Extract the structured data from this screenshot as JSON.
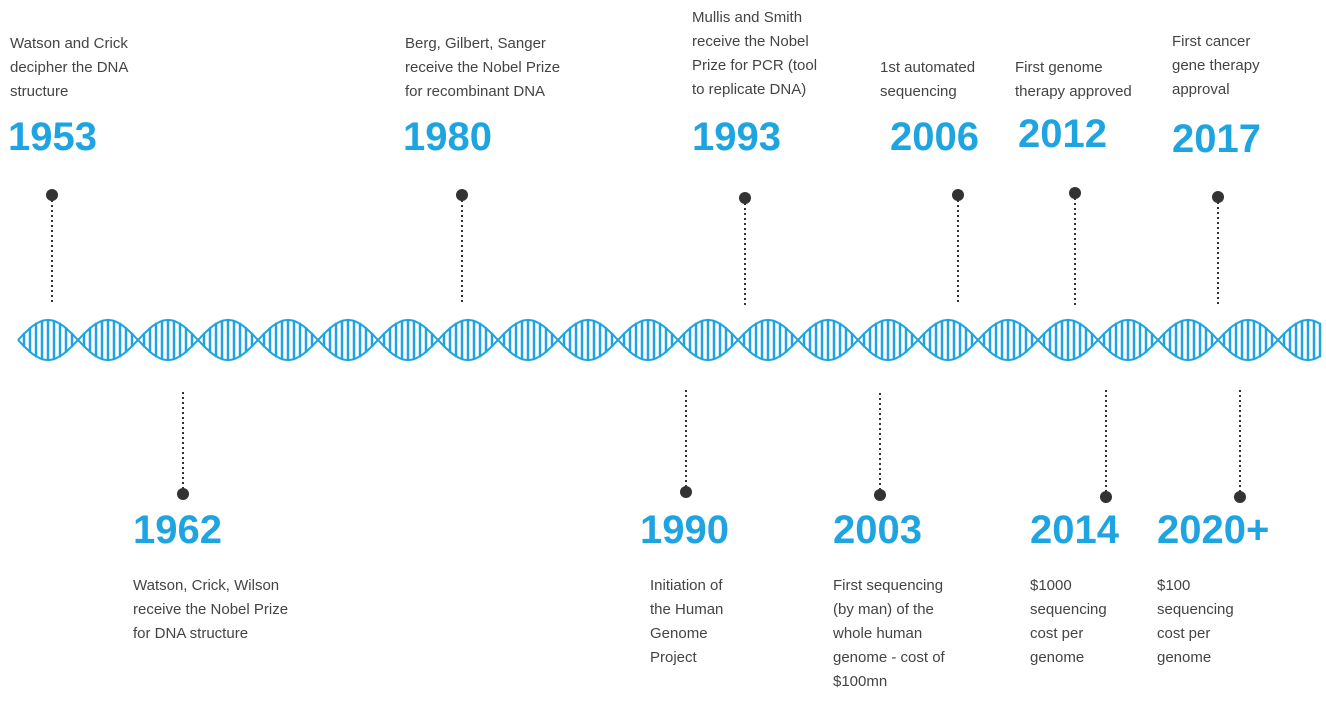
{
  "events": [
    {
      "year": "1953",
      "lines": [
        "Watson and Crick",
        "decipher the DNA",
        "structure"
      ]
    },
    {
      "year": "1962",
      "lines": [
        "Watson, Crick, Wilson",
        "receive the Nobel Prize",
        "for DNA structure"
      ]
    },
    {
      "year": "1980",
      "lines": [
        "Berg, Gilbert, Sanger",
        "receive the Nobel Prize",
        "for recombinant DNA"
      ]
    },
    {
      "year": "1990",
      "lines": [
        "Initiation of",
        "the Human",
        "Genome",
        "Project"
      ]
    },
    {
      "year": "1993",
      "lines": [
        "Mullis and Smith",
        "receive the Nobel",
        "Prize for PCR (tool",
        "to replicate DNA)"
      ]
    },
    {
      "year": "2003",
      "lines": [
        "First sequencing",
        "(by man) of the",
        "whole human",
        "genome - cost of",
        "$100mn"
      ]
    },
    {
      "year": "2006",
      "lines": [
        "1st automated",
        "sequencing"
      ]
    },
    {
      "year": "2012",
      "lines": [
        "First genome",
        "therapy approved"
      ]
    },
    {
      "year": "2014",
      "lines": [
        "$1000",
        "sequencing",
        "cost per",
        "genome"
      ]
    },
    {
      "year": "2017",
      "lines": [
        "First cancer",
        "gene therapy",
        "approval"
      ]
    },
    {
      "year": "2020+",
      "lines": [
        "$100",
        "sequencing",
        "cost per",
        "genome"
      ]
    }
  ]
}
